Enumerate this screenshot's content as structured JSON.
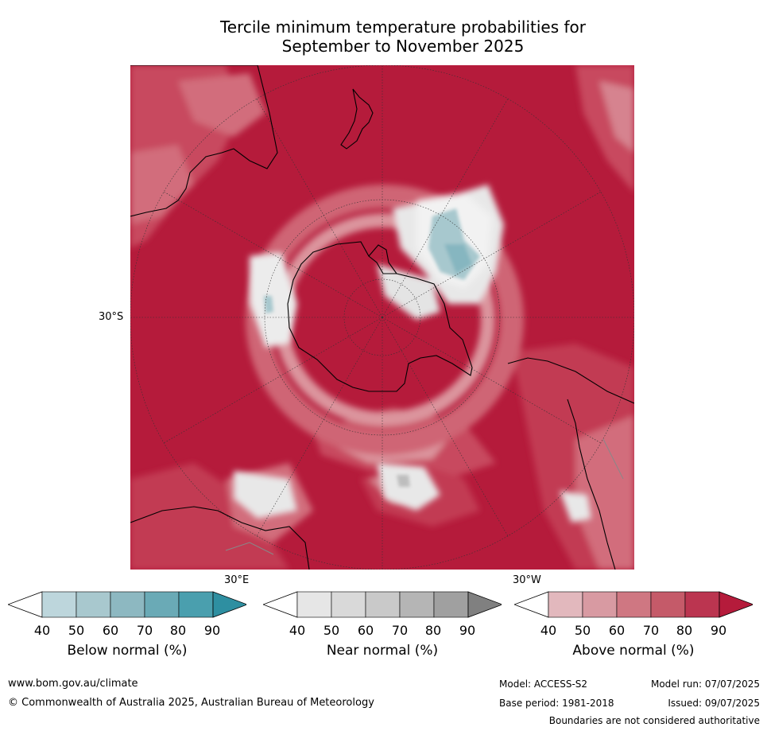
{
  "title": {
    "line1": "Tercile minimum temperature probabilities for",
    "line2": "September to November 2025"
  },
  "map": {
    "projection": "south-polar-stereographic",
    "lat_labels": [
      "30°S"
    ],
    "lon_labels": [
      "30°E",
      "30°W"
    ],
    "colors": {
      "above_90": "#b51b3b",
      "above_80": "#c23150",
      "above_70": "#ca5565",
      "above_60": "#d2717e",
      "above_50": "#dc949d",
      "above_40": "#e5b7bc",
      "near_normal": "#e8e8e8",
      "below_50": "#a7c8ce",
      "below_60": "#86b6c0",
      "coast": "#000000",
      "border": "#888888"
    }
  },
  "legends": [
    {
      "name": "below-normal",
      "title": "Below normal (%)",
      "ticks": [
        "40",
        "50",
        "60",
        "70",
        "80",
        "90"
      ],
      "colors": [
        "#ffffff",
        "#bdd6dc",
        "#a8c8ce",
        "#8db8c1",
        "#6aaab6",
        "#4a9fae",
        "#2e8fa1"
      ]
    },
    {
      "name": "near-normal",
      "title": "Near normal (%)",
      "ticks": [
        "40",
        "50",
        "60",
        "70",
        "80",
        "90"
      ],
      "colors": [
        "#ffffff",
        "#e6e6e6",
        "#d9d9d9",
        "#c9c9c9",
        "#b5b5b5",
        "#a0a0a0",
        "#808080"
      ]
    },
    {
      "name": "above-normal",
      "title": "Above normal (%)",
      "ticks": [
        "40",
        "50",
        "60",
        "70",
        "80",
        "90"
      ],
      "colors": [
        "#ffffff",
        "#e2b8bd",
        "#d89aa2",
        "#cf7782",
        "#c55a69",
        "#bb3550",
        "#b51b3b"
      ]
    }
  ],
  "footer": {
    "url": "www.bom.gov.au/climate",
    "copyright": "© Commonwealth of Australia 2025, Australian Bureau of Meteorology",
    "model": "Model: ACCESS-S2",
    "base_period": "Base period: 1981-2018",
    "model_run": "Model run: 07/07/2025",
    "issued": "Issued: 09/07/2025",
    "disclaimer": "Boundaries are not considered authoritative"
  }
}
